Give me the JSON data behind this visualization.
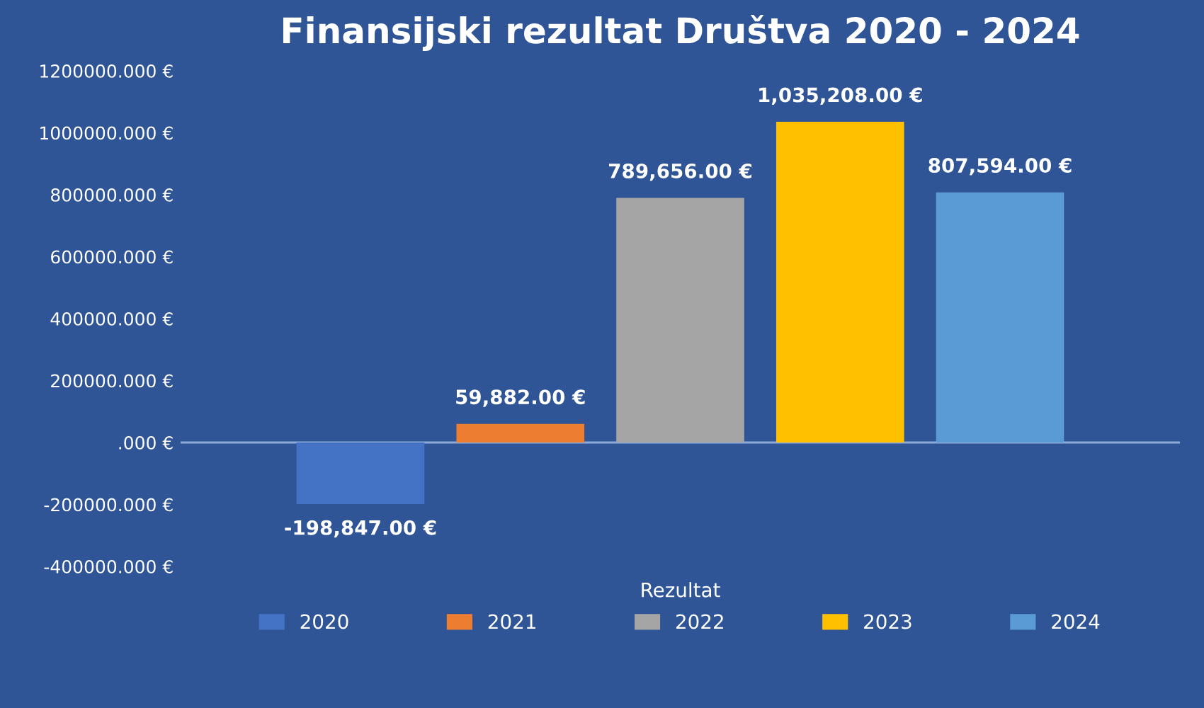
{
  "chart_data": {
    "type": "bar",
    "title": "Finansijski rezultat Društva 2020 - 2024",
    "categories": [
      "Rezultat"
    ],
    "series": [
      {
        "name": "2020",
        "color": "#4472c4",
        "values": [
          -198847
        ],
        "value_labels": [
          "-198,847.00 €"
        ]
      },
      {
        "name": "2021",
        "color": "#ed7d31",
        "values": [
          59882
        ],
        "value_labels": [
          "59,882.00 €"
        ]
      },
      {
        "name": "2022",
        "color": "#a5a5a5",
        "values": [
          789656
        ],
        "value_labels": [
          "789,656.00 €"
        ]
      },
      {
        "name": "2023",
        "color": "#ffc000",
        "values": [
          1035208
        ],
        "value_labels": [
          "1,035,208.00 €"
        ]
      },
      {
        "name": "2024",
        "color": "#5b9bd5",
        "values": [
          807594
        ],
        "value_labels": [
          "807,594.00 €"
        ]
      }
    ],
    "ylim": [
      -400000,
      1200000
    ],
    "yticks": [
      {
        "value": -400000,
        "label": "-400000.000 €"
      },
      {
        "value": -200000,
        "label": "-200000.000 €"
      },
      {
        "value": 0,
        "label": ".000 €"
      },
      {
        "value": 200000,
        "label": "200000.000 €"
      },
      {
        "value": 400000,
        "label": "400000.000 €"
      },
      {
        "value": 600000,
        "label": "600000.000 €"
      },
      {
        "value": 800000,
        "label": "800000.000 €"
      },
      {
        "value": 1000000,
        "label": "1000000.000 €"
      },
      {
        "value": 1200000,
        "label": "1200000.000 €"
      }
    ],
    "ref_lines": [
      {
        "axis": "y",
        "value": 0,
        "color": "#8fa9d9"
      }
    ],
    "legend": "bottom"
  }
}
